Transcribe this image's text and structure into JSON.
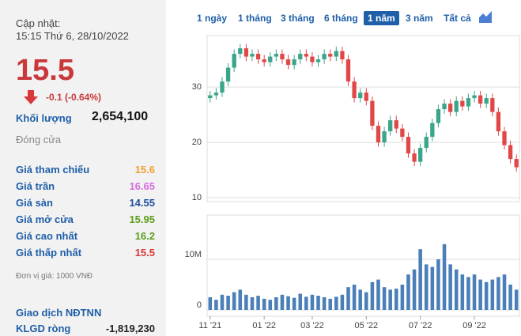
{
  "panel": {
    "updated_label": "Cập nhật:",
    "updated_time": "15:15 Thứ 6, 28/10/2022",
    "price": "15.5",
    "change": "-0.1 (-0.64%)",
    "volume_label": "Khối lượng",
    "volume": "2,654,100",
    "status": "Đóng cửa",
    "stats": [
      {
        "label": "Giá tham chiếu",
        "value": "15.6",
        "color": "#f0a030"
      },
      {
        "label": "Giá trần",
        "value": "16.65",
        "color": "#d46ee0"
      },
      {
        "label": "Giá sàn",
        "value": "14.55",
        "color": "#1f4f9a"
      },
      {
        "label": "Giá mở cửa",
        "value": "15.95",
        "color": "#5a9e1a"
      },
      {
        "label": "Giá cao nhất",
        "value": "16.2",
        "color": "#5a9e1a"
      },
      {
        "label": "Giá thấp nhất",
        "value": "15.5",
        "color": "#d9383a"
      }
    ],
    "unit_note": "Đơn vị giá: 1000 VNĐ",
    "foreign_title": "Giao dịch NĐTNN",
    "net_label": "KLGD ròng",
    "net_value": "-1,819,230"
  },
  "ranges": [
    "1 ngày",
    "1 tháng",
    "3 tháng",
    "6 tháng",
    "1 năm",
    "3 năm",
    "Tất cả"
  ],
  "active_range_index": 4,
  "chart_data": {
    "type": "candlestick",
    "categories": [
      "11 '21",
      null,
      null,
      null,
      null,
      null,
      null,
      null,
      null,
      "01 '22",
      null,
      null,
      null,
      null,
      null,
      null,
      null,
      "03 '22",
      null,
      null,
      null,
      null,
      null,
      null,
      null,
      null,
      "05 '22",
      null,
      null,
      null,
      null,
      null,
      null,
      null,
      null,
      "07 '22",
      null,
      null,
      null,
      null,
      null,
      null,
      null,
      null,
      "09 '22",
      null,
      null,
      null,
      null,
      null,
      null,
      null
    ],
    "open": [
      28,
      28.5,
      29,
      31,
      33.5,
      36,
      37,
      35.5,
      36,
      35,
      34.5,
      35.5,
      36,
      35,
      34,
      35,
      36,
      35.5,
      34.5,
      35,
      36,
      35.5,
      36.5,
      35,
      31,
      28,
      29,
      27.5,
      23,
      20,
      22,
      24,
      22.5,
      21,
      18,
      16.5,
      19,
      21,
      23.5,
      26,
      27,
      25.5,
      27.5,
      26.5,
      28,
      28.5,
      27,
      28,
      25.5,
      22,
      19.5,
      17
    ],
    "high": [
      29.3,
      29.8,
      31.8,
      34.3,
      36.8,
      37.8,
      37.8,
      36.8,
      36.8,
      35.8,
      36.3,
      36.8,
      36.8,
      35.8,
      35.8,
      36.8,
      36.8,
      36.3,
      35.8,
      36.8,
      36.8,
      37.3,
      37.3,
      35.8,
      31.8,
      29.8,
      29.8,
      28.3,
      23.8,
      22.8,
      24.8,
      24.8,
      23.3,
      21.8,
      18.8,
      19.8,
      21.8,
      24.3,
      26.8,
      27.8,
      27.8,
      28.3,
      28.3,
      28.8,
      29.3,
      29.3,
      28.8,
      28.8,
      26.3,
      22.8,
      20.3,
      17.8
    ],
    "low": [
      27.2,
      27.7,
      28.2,
      30.2,
      32.7,
      35.2,
      34.7,
      34.7,
      34.2,
      33.7,
      33.7,
      34.7,
      34.2,
      33.2,
      33.2,
      34.2,
      34.7,
      33.7,
      33.7,
      34.2,
      34.7,
      34.7,
      34.2,
      30.2,
      27.2,
      27.2,
      26.7,
      22.2,
      19.2,
      19.2,
      21.2,
      21.7,
      20.2,
      17.2,
      15.7,
      15.7,
      18.2,
      20.2,
      22.7,
      25.2,
      24.7,
      24.7,
      25.7,
      25.7,
      27.2,
      26.2,
      26.2,
      24.7,
      21.2,
      18.7,
      16.2,
      14.7
    ],
    "close": [
      28.5,
      29,
      31,
      33.5,
      36,
      37,
      35.5,
      36,
      35,
      34.5,
      35.5,
      36,
      35,
      34,
      35,
      36,
      35.5,
      34.5,
      35,
      36,
      35.5,
      36.5,
      35,
      31,
      28,
      29,
      27.5,
      23,
      20,
      22,
      24,
      22.5,
      21,
      18,
      16.5,
      19,
      21,
      23.5,
      26,
      27,
      25.5,
      27.5,
      26.5,
      28,
      28.5,
      27,
      28,
      25.5,
      22,
      19.5,
      17,
      15.5
    ],
    "volume": [
      2500000,
      2000000,
      3000000,
      2800000,
      3500000,
      4000000,
      3000000,
      2500000,
      2800000,
      2200000,
      2000000,
      2500000,
      3000000,
      2700000,
      2400000,
      3200000,
      2600000,
      3000000,
      2800000,
      2500000,
      2200000,
      2600000,
      3000000,
      4500000,
      5000000,
      4000000,
      3500000,
      5500000,
      6000000,
      4500000,
      4000000,
      4200000,
      5000000,
      7000000,
      8000000,
      12000000,
      9000000,
      8500000,
      10000000,
      13000000,
      9000000,
      8000000,
      7000000,
      6500000,
      7000000,
      6000000,
      5500000,
      6000000,
      6500000,
      7000000,
      5000000,
      4000000
    ],
    "up_color": "#3aa58a",
    "down_color": "#e04848",
    "volume_color": "#4a7fb8",
    "ylim": [
      9.3,
      39.3
    ],
    "yticks": [
      10,
      20,
      30
    ],
    "volume_ylim": [
      -1250000,
      18750000
    ],
    "volume_yticks": [
      0,
      {
        "value": 10000000,
        "label": "10M"
      }
    ]
  }
}
